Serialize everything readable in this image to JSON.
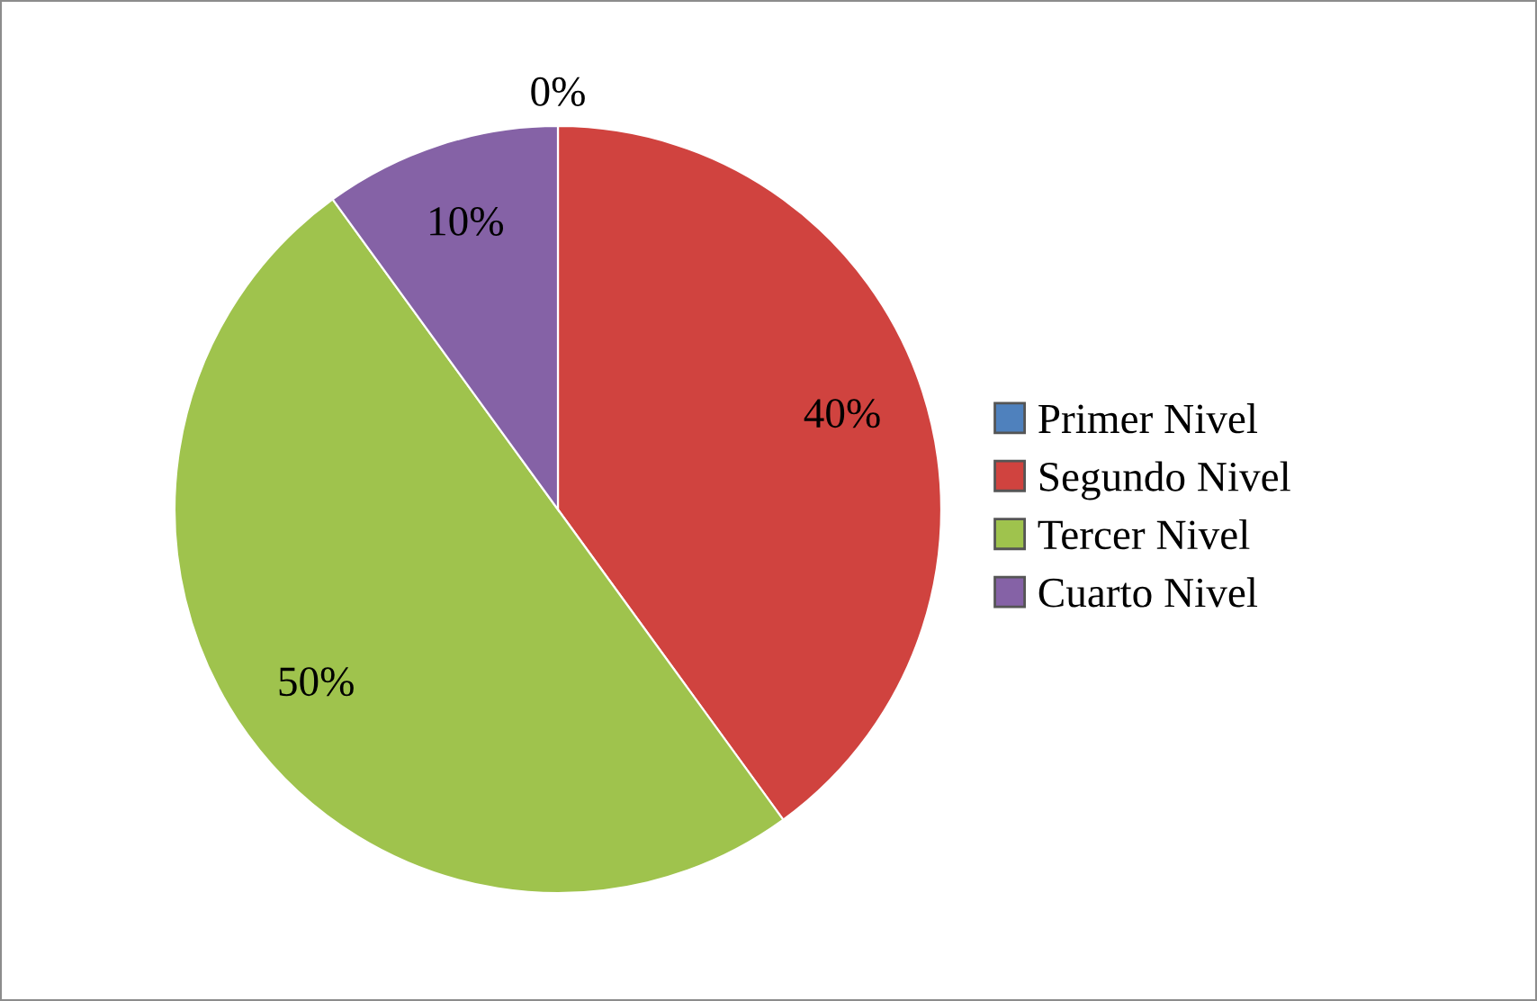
{
  "chart_data": {
    "type": "pie",
    "categories": [
      "Primer Nivel",
      "Segundo Nivel",
      "Tercer Nivel",
      "Cuarto Nivel"
    ],
    "values": [
      0,
      40,
      50,
      10
    ],
    "colors": [
      "#4f81bd",
      "#d0433f",
      "#9fc34d",
      "#8562a6"
    ],
    "value_labels": [
      "0%",
      "40%",
      "50%",
      "10%"
    ],
    "legend": "right"
  }
}
